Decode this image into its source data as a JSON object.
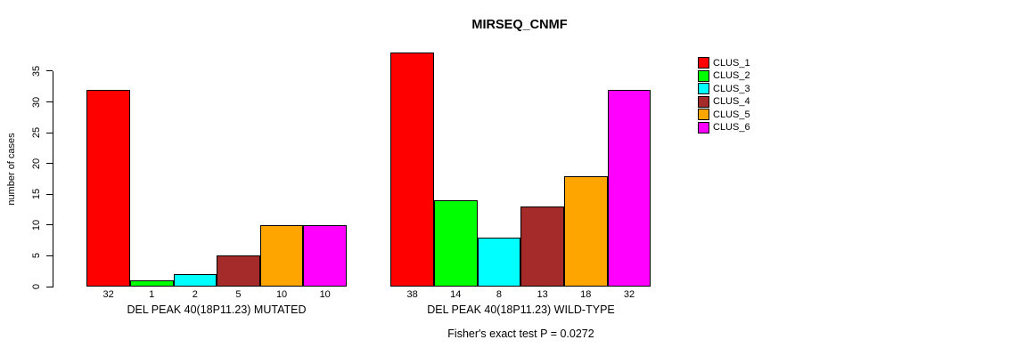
{
  "title": "MIRSEQ_CNMF",
  "y_axis": {
    "label": "number of cases"
  },
  "legend": {
    "items": [
      {
        "label": "CLUS_1",
        "color": "#FF0000"
      },
      {
        "label": "CLUS_2",
        "color": "#00FF00"
      },
      {
        "label": "CLUS_3",
        "color": "#00FFFF"
      },
      {
        "label": "CLUS_4",
        "color": "#A52A2A"
      },
      {
        "label": "CLUS_5",
        "color": "#FFA500"
      },
      {
        "label": "CLUS_6",
        "color": "#FF00FF"
      }
    ]
  },
  "footer": "Fisher's exact test P = 0.0272",
  "chart_data": {
    "type": "bar",
    "title": "MIRSEQ_CNMF",
    "ylabel": "number of cases",
    "ylim": [
      0,
      38
    ],
    "yticks": [
      0,
      5,
      10,
      15,
      20,
      25,
      30,
      35
    ],
    "grid": false,
    "legend_position": "right",
    "categories": [
      "CLUS_1",
      "CLUS_2",
      "CLUS_3",
      "CLUS_4",
      "CLUS_5",
      "CLUS_6"
    ],
    "colors": [
      "#FF0000",
      "#00FF00",
      "#00FFFF",
      "#A52A2A",
      "#FFA500",
      "#FF00FF"
    ],
    "panels": [
      {
        "xlabel": "DEL PEAK 40(18P11.23) MUTATED",
        "values": [
          32,
          1,
          2,
          5,
          10,
          10
        ]
      },
      {
        "xlabel": "DEL PEAK 40(18P11.23) WILD-TYPE",
        "values": [
          38,
          14,
          8,
          13,
          18,
          32
        ]
      }
    ],
    "annotation": "Fisher's exact test P = 0.0272"
  }
}
